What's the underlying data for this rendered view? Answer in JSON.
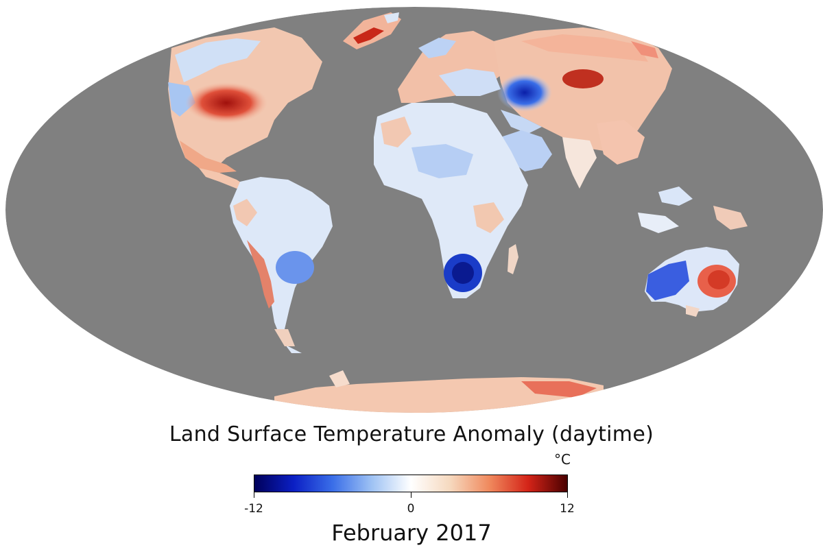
{
  "map": {
    "projection": "mollweide",
    "ocean_color": "#808080",
    "continents": [
      "north-america",
      "greenland",
      "south-america",
      "europe",
      "africa",
      "asia",
      "arabian-peninsula",
      "indian-subcontinent",
      "southeast-asia",
      "madagascar",
      "australia",
      "antarctica"
    ]
  },
  "legend": {
    "title": "Land Surface Temperature Anomaly (daytime)",
    "unit": "°C",
    "min": -12,
    "mid": 0,
    "max": 12,
    "min_label": "-12",
    "mid_label": "0",
    "max_label": "12",
    "colors": [
      "#00005a",
      "#0b1fc4",
      "#3a6ee8",
      "#9ec2f4",
      "#ffffff",
      "#f6d9bf",
      "#f08a5e",
      "#d42418",
      "#4a0000"
    ]
  },
  "date": "February 2017"
}
